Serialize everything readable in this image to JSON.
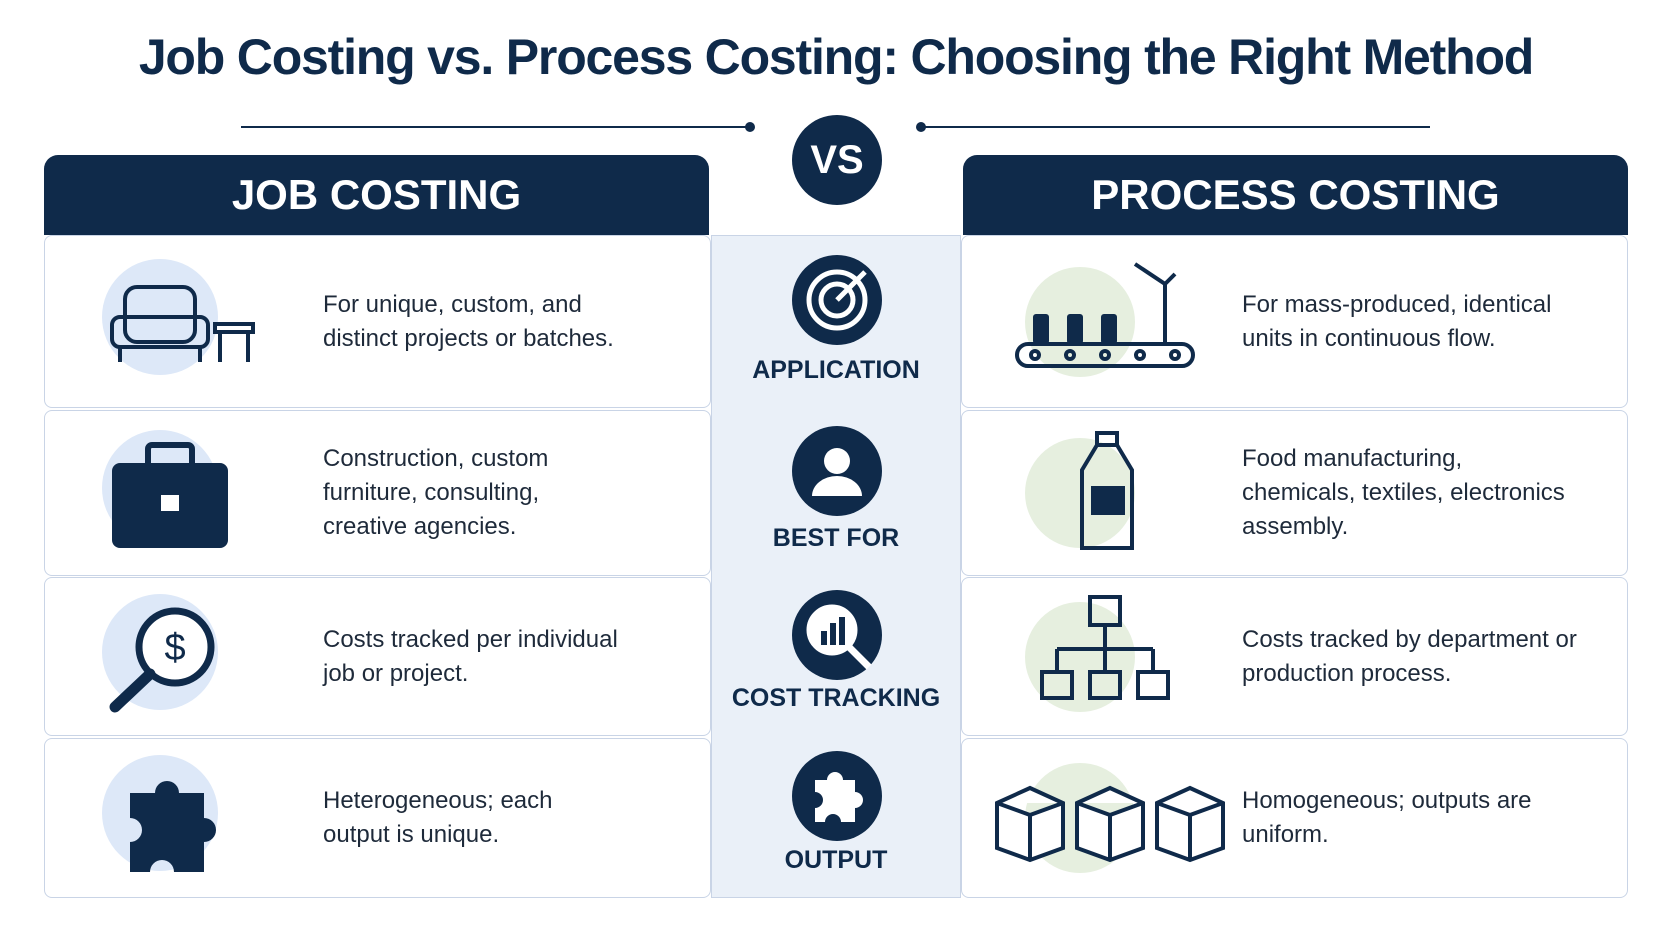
{
  "title": "Job Costing vs. Process Costing: Choosing the Right Method",
  "vs": "VS",
  "left": {
    "header": "JOB COSTING",
    "rows": [
      "For unique, custom, and distinct projects or batches.",
      "Construction, custom furniture, consulting, creative agencies.",
      "Costs tracked per individual job or project.",
      "Heterogeneous; each output is unique."
    ]
  },
  "center": {
    "labels": [
      "APPLICATION",
      "BEST FOR",
      "COST TRACKING",
      "OUTPUT"
    ]
  },
  "right": {
    "header": "PROCESS COSTING",
    "rows": [
      "For mass-produced, identical units in continuous flow.",
      "Food manufacturing, chemicals, textiles, electronics assembly.",
      "Costs tracked by department or production process.",
      "Homogeneous; outputs are uniform."
    ]
  }
}
